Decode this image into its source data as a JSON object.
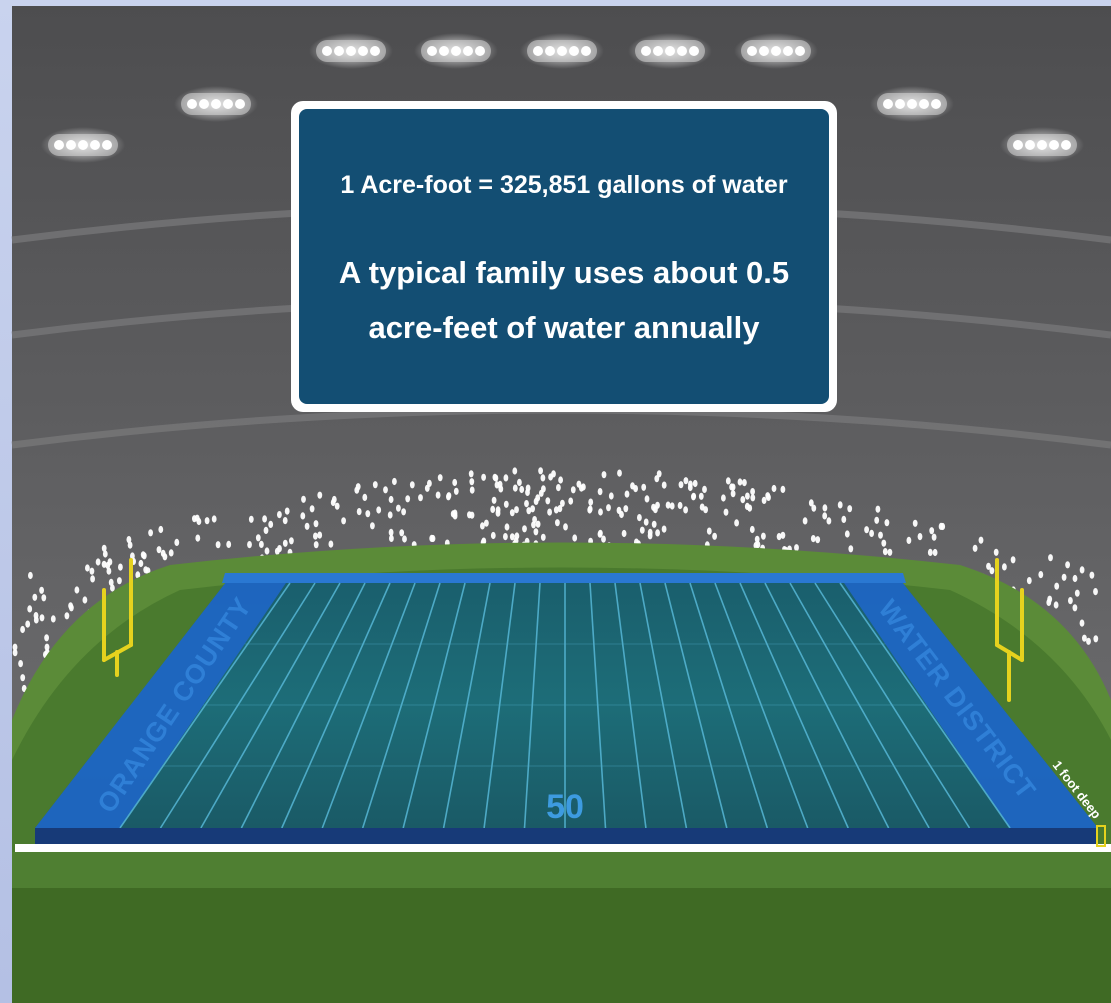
{
  "scoreboard": {
    "line1": "1 Acre-foot = 325,851 gallons of water",
    "line2": "A typical family  uses about 0.5",
    "line3": "acre-feet of water annually"
  },
  "field": {
    "endzone_left": "ORANGE COUNTY",
    "endzone_right": "WATER DISTRICT",
    "yard_marker": "50",
    "depth_label": "1 foot deep"
  },
  "colors": {
    "scoreboard_bg": "#134e73",
    "water": "#1c6b7a",
    "endzone": "#1e66c4",
    "turf": "#4e7c32",
    "stands": "#5a5a5c",
    "goalpost": "#e6d21e"
  }
}
